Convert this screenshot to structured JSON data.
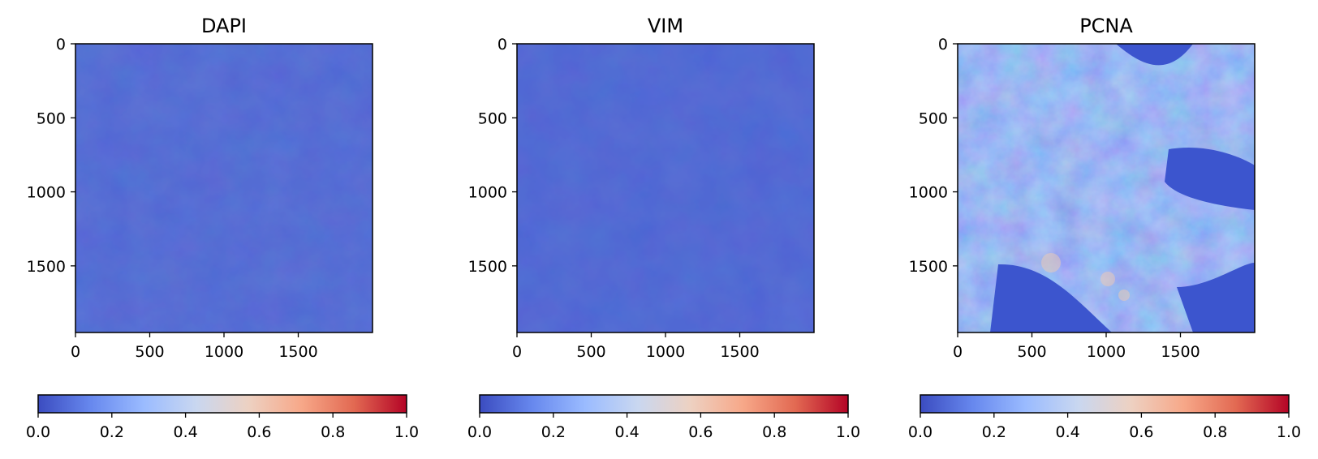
{
  "chart_data": [
    {
      "type": "heatmap",
      "title": "DAPI",
      "xlabel": "",
      "ylabel": "",
      "x_ticks": [
        0,
        500,
        1000,
        1500
      ],
      "y_ticks": [
        0,
        500,
        1000,
        1500
      ],
      "xlim": [
        0,
        2000
      ],
      "ylim": [
        1950,
        0
      ],
      "colorbar": {
        "colormap": "coolwarm",
        "range": [
          0.0,
          1.0
        ],
        "ticks": [
          "0.0",
          "0.2",
          "0.4",
          "0.6",
          "0.8",
          "1.0"
        ],
        "placement": "bottom"
      },
      "intensity": "low",
      "base_color": "#3f5dd0"
    },
    {
      "type": "heatmap",
      "title": "VIM",
      "xlabel": "",
      "ylabel": "",
      "x_ticks": [
        0,
        500,
        1000,
        1500
      ],
      "y_ticks": [
        0,
        500,
        1000,
        1500
      ],
      "xlim": [
        0,
        2000
      ],
      "ylim": [
        1950,
        0
      ],
      "colorbar": {
        "colormap": "coolwarm",
        "range": [
          0.0,
          1.0
        ],
        "ticks": [
          "0.0",
          "0.2",
          "0.4",
          "0.6",
          "0.8",
          "1.0"
        ],
        "placement": "bottom"
      },
      "intensity": "low",
      "base_color": "#3e5bd0"
    },
    {
      "type": "heatmap",
      "title": "PCNA",
      "xlabel": "",
      "ylabel": "",
      "x_ticks": [
        0,
        500,
        1000,
        1500
      ],
      "y_ticks": [
        0,
        500,
        1000,
        1500
      ],
      "xlim": [
        0,
        2000
      ],
      "ylim": [
        1950,
        0
      ],
      "colorbar": {
        "colormap": "coolwarm",
        "range": [
          0.0,
          1.0
        ],
        "ticks": [
          "0.0",
          "0.2",
          "0.4",
          "0.6",
          "0.8",
          "1.0"
        ],
        "placement": "bottom"
      },
      "intensity": "medium",
      "base_color": "#5f86ec"
    }
  ],
  "colors": {
    "coolwarm": [
      "#3b4cc0",
      "#6788ee",
      "#9abbff",
      "#c9d7f0",
      "#edd1c2",
      "#f7a889",
      "#e26952",
      "#b40426"
    ],
    "background_low": "#3c55ce"
  }
}
